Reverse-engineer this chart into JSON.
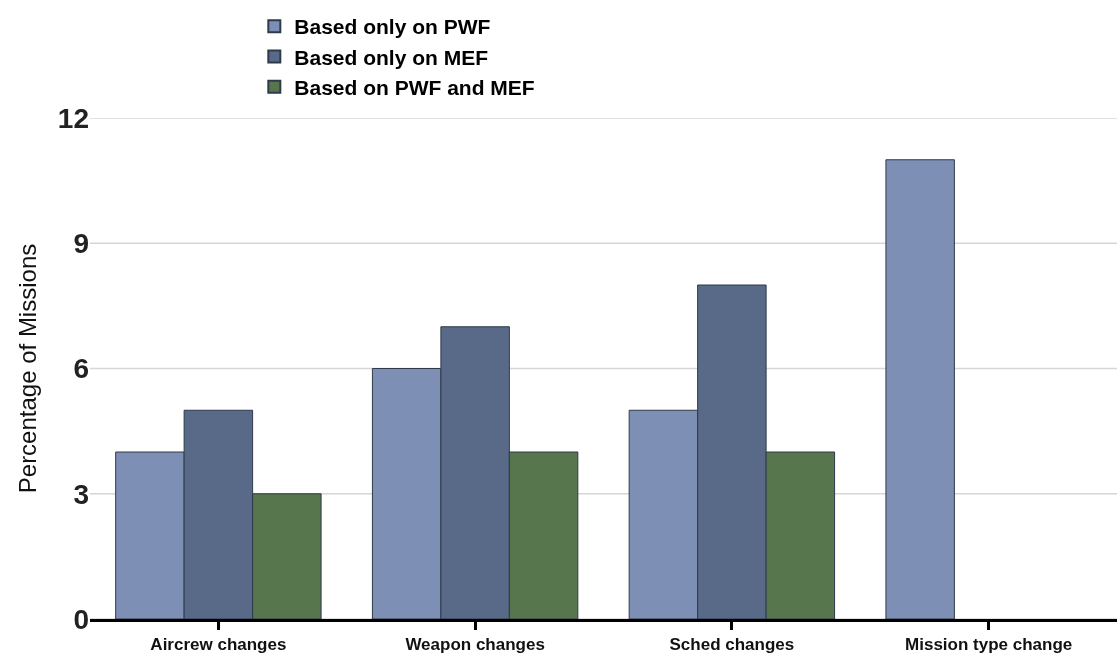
{
  "chart_data": {
    "type": "bar",
    "ylabel": "Percentage of Missions",
    "categories": [
      "Aircrew changes",
      "Weapon changes",
      "Sched changes",
      "Mission type change"
    ],
    "series": [
      {
        "name": "Based only on PWF",
        "color": "#7d8fb5",
        "values": [
          4,
          6,
          5,
          11
        ]
      },
      {
        "name": "Based only on MEF",
        "color": "#586a87",
        "values": [
          5,
          7,
          8,
          null
        ]
      },
      {
        "name": "Based on PWF and MEF",
        "color": "#58764e",
        "values": [
          3,
          4,
          4,
          null
        ]
      }
    ],
    "ylim": [
      0,
      12
    ],
    "yticks": [
      0,
      3,
      6,
      9,
      12
    ],
    "grid": "y",
    "legend": "top"
  }
}
